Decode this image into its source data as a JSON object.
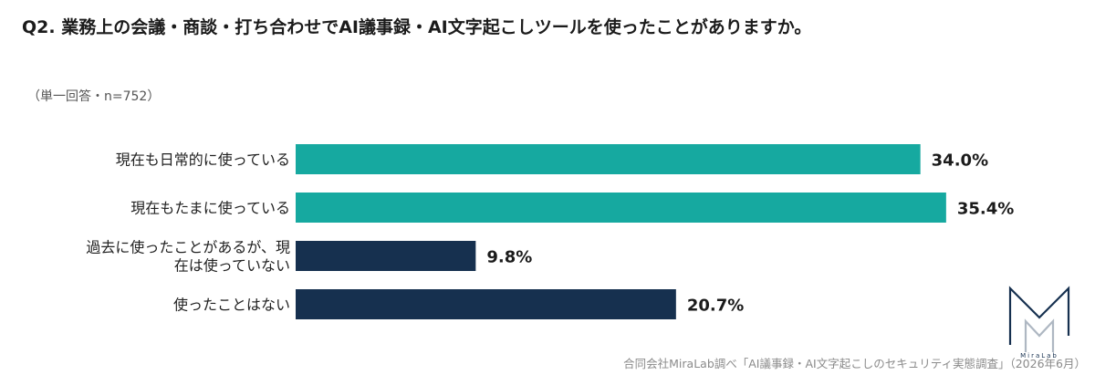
{
  "header": {
    "title": "Q2. 業務上の会議・商談・打ち合わせでAI議事録・AI文字起こしツールを使ったことがありますか。",
    "subtitle": "（単一回答・n=752）"
  },
  "chart_data": {
    "type": "bar",
    "orientation": "horizontal",
    "categories": [
      [
        "現在も日常的に使っている"
      ],
      [
        "現在もたまに使っている"
      ],
      [
        "過去に使ったことがあるが、現",
        "在は使っていない"
      ],
      [
        "使ったことはない"
      ]
    ],
    "values": [
      34.0,
      35.4,
      9.8,
      20.7
    ],
    "value_labels": [
      "34.0%",
      "35.4%",
      "9.8%",
      "20.7%"
    ],
    "colors": [
      "#16a9a0",
      "#16a9a0",
      "#16304f",
      "#16304f"
    ],
    "xlim": [
      0,
      36.5
    ],
    "grid": false,
    "legend": "none"
  },
  "footer": {
    "source": "合同会社MiraLab調べ「AI議事録・AI文字起こしのセキュリティ実態調査」（2026年6月）"
  },
  "logo": {
    "text": "MiraLab",
    "color": "#16304f"
  }
}
